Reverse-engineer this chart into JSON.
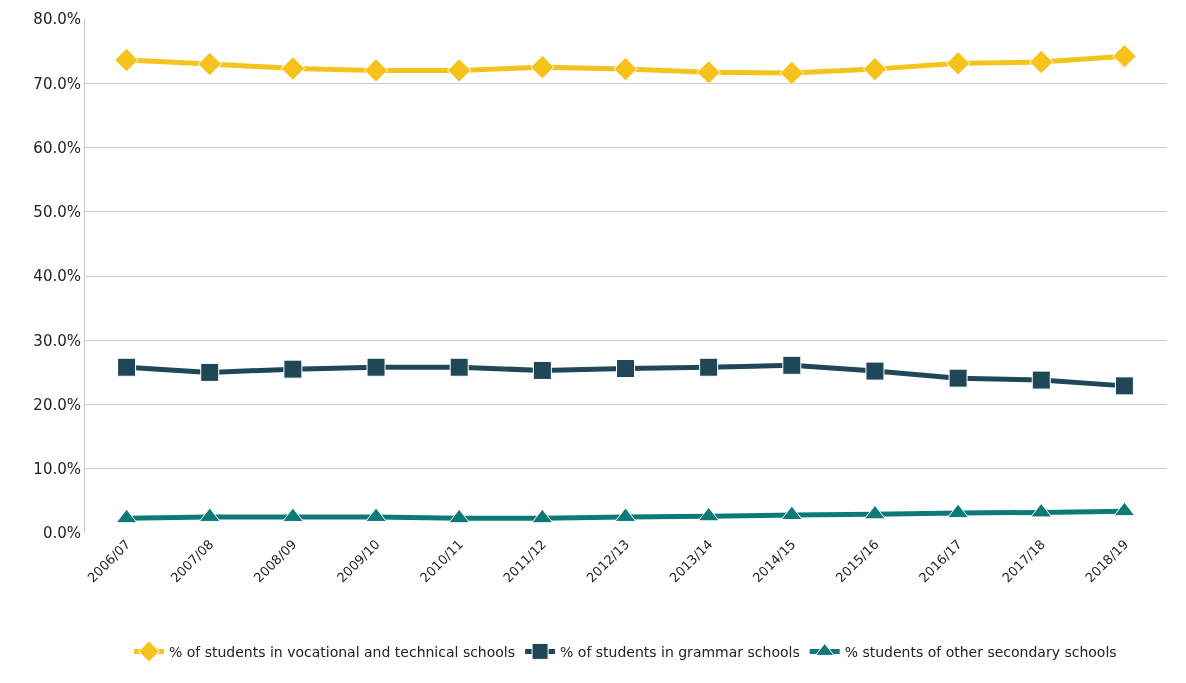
{
  "chart_data": {
    "type": "line",
    "categories": [
      "2006/07",
      "2007/08",
      "2008/09",
      "2009/10",
      "2010/11",
      "2011/12",
      "2012/13",
      "2013/14",
      "2014/15",
      "2015/16",
      "2016/17",
      "2017/18",
      "2018/19"
    ],
    "series": [
      {
        "name": "% of students in vocational and technical schools",
        "color": "#f6c21c",
        "marker": "diamond",
        "values": [
          73.6,
          73.0,
          72.3,
          72.0,
          72.0,
          72.5,
          72.2,
          71.7,
          71.6,
          72.2,
          73.1,
          73.3,
          74.2
        ]
      },
      {
        "name": "% of students in grammar schools",
        "color": "#1f4757",
        "marker": "square",
        "values": [
          25.8,
          25.0,
          25.5,
          25.8,
          25.8,
          25.3,
          25.6,
          25.8,
          26.1,
          25.2,
          24.1,
          23.8,
          22.9
        ]
      },
      {
        "name": "% students of other secondary schools",
        "color": "#0d7a78",
        "marker": "triangle",
        "values": [
          2.3,
          2.5,
          2.5,
          2.5,
          2.3,
          2.3,
          2.5,
          2.6,
          2.8,
          2.9,
          3.1,
          3.2,
          3.4
        ]
      }
    ],
    "ylim": [
      0,
      80
    ],
    "yticks": [
      {
        "value": 0,
        "label": "0.0%"
      },
      {
        "value": 10,
        "label": "10.0%"
      },
      {
        "value": 20,
        "label": "20.0%"
      },
      {
        "value": 30,
        "label": "30.0%"
      },
      {
        "value": 40,
        "label": "40.0%"
      },
      {
        "value": 50,
        "label": "50.0%"
      },
      {
        "value": 60,
        "label": "60.0%"
      },
      {
        "value": 70,
        "label": "70.0%"
      },
      {
        "value": 80,
        "label": "80.0%"
      }
    ],
    "grid": "y",
    "legend": "bottom",
    "line_style": "solid"
  }
}
